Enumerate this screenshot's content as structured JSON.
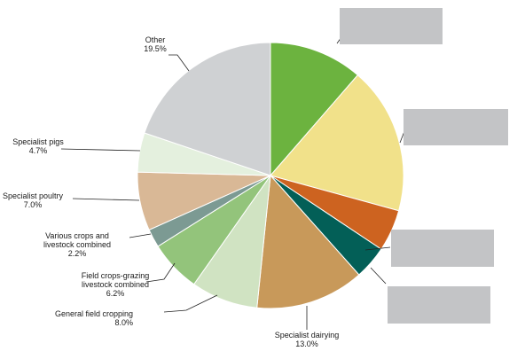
{
  "chart_data": {
    "type": "pie",
    "title": "",
    "categories": [
      "",
      "",
      "",
      "",
      "Specialist dairying",
      "General field cropping",
      "Field crops-grazing livestock combined",
      "Various crops and livestock combined",
      "Specialist poultry",
      "Specialist pigs",
      "Other"
    ],
    "values": [
      11.2,
      17.6,
      5.0,
      4.0,
      13.0,
      8.0,
      6.2,
      2.2,
      7.0,
      4.7,
      19.5
    ],
    "value_labels": [
      "",
      "",
      "",
      "",
      "13.0%",
      "8.0%",
      "6.2%",
      "2.2%",
      "7.0%",
      "4.7%",
      "19.5%"
    ],
    "label_lines": [
      [],
      [],
      [],
      [],
      [
        "Specialist dairying"
      ],
      [
        "General field cropping"
      ],
      [
        "Field crops-grazing",
        "livestock combined"
      ],
      [
        "Various crops and",
        "livestock combined"
      ],
      [
        "Specialist poultry"
      ],
      [
        "Specialist pigs"
      ],
      [
        "Other"
      ]
    ],
    "colors": [
      "#6cb33f",
      "#f1e18a",
      "#cd6320",
      "#035f57",
      "#c8995a",
      "#d0e3c2",
      "#93c47b",
      "#7c9a93",
      "#d9b896",
      "#e4f0de",
      "#cfd1d3"
    ],
    "legend": "none",
    "redacted_labels": 4
  }
}
